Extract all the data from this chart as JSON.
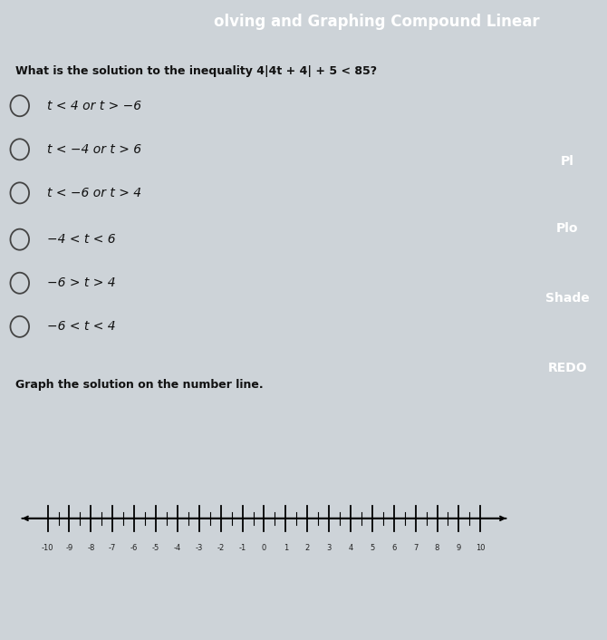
{
  "title_text": "olving and Graphing Compound Linear",
  "title_bg": "#2d6fad",
  "question": "What is the solution to the inequality 4|4t + 4| + 5 < 85?",
  "options": [
    "t < 4 or t > −6",
    "t < −4 or t > 6",
    "t < −6 or t > 4",
    "−4 < t < 6",
    "−6 > t > 4",
    "−6 < t < 4"
  ],
  "graph_label": "Graph the solution on the number line.",
  "number_line_min": -10,
  "number_line_max": 10,
  "bg_color": "#cdd3d8",
  "text_color": "#111111",
  "button_bg": "#2d6fad",
  "button_gold": "#d4a017",
  "button_labels": [
    "Pl",
    "Plo",
    "Shade",
    "REDO"
  ],
  "bottom_bar_color": "#5bc8e0",
  "title_fontsize": 12,
  "question_fontsize": 9,
  "option_fontsize": 10,
  "graph_label_fontsize": 9,
  "nl_fontsize": 6
}
